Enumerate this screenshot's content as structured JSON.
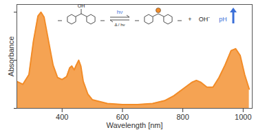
{
  "chart_data": {
    "type": "area",
    "x_label": "Wavelength [nm]",
    "y_label": "Absorbance",
    "x": [
      250,
      270,
      290,
      305,
      320,
      330,
      340,
      355,
      370,
      385,
      400,
      415,
      425,
      432,
      440,
      447,
      455,
      462,
      470,
      485,
      500,
      550,
      600,
      650,
      700,
      740,
      770,
      800,
      830,
      845,
      860,
      880,
      900,
      920,
      940,
      960,
      975,
      990,
      1005,
      1020
    ],
    "values": [
      0.28,
      0.25,
      0.35,
      0.7,
      0.96,
      1.0,
      0.95,
      0.7,
      0.45,
      0.32,
      0.3,
      0.33,
      0.42,
      0.44,
      0.4,
      0.45,
      0.5,
      0.44,
      0.28,
      0.15,
      0.09,
      0.05,
      0.04,
      0.04,
      0.05,
      0.08,
      0.13,
      0.2,
      0.27,
      0.29,
      0.27,
      0.22,
      0.22,
      0.32,
      0.45,
      0.6,
      0.62,
      0.55,
      0.35,
      0.2
    ],
    "color": "#f28c28",
    "xlim": [
      250,
      1030
    ],
    "xticks": [
      400,
      600,
      800,
      1000
    ],
    "ylim": [
      0,
      1.08
    ],
    "yticks": [
      0,
      0.5,
      1
    ],
    "tick_labels": "x",
    "annotations": [
      "OH",
      "hν",
      "Δ / hν",
      "+",
      "OH⁻",
      "pH"
    ]
  }
}
